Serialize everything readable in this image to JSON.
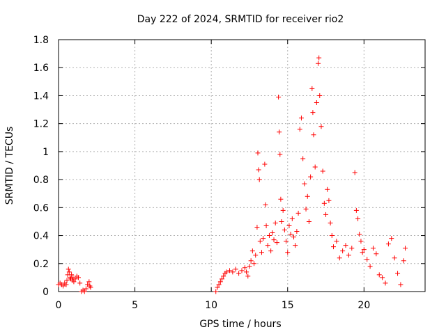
{
  "chart_data": {
    "type": "scatter",
    "title": "Day 222 of 2024, SRMTID for receiver rio2",
    "xlabel": "GPS time / hours",
    "ylabel": "SRMTID / TECUs",
    "xlim": [
      0,
      24
    ],
    "ylim": [
      0,
      1.8
    ],
    "xticks": [
      0,
      5,
      10,
      15,
      20
    ],
    "xtick_labels": [
      "0",
      "5",
      "10",
      "15",
      "20"
    ],
    "yticks": [
      0,
      0.2,
      0.4,
      0.6,
      0.8,
      1,
      1.2,
      1.4,
      1.6,
      1.8
    ],
    "ytick_labels": [
      "0",
      "0.2",
      "0.4",
      "0.6",
      "0.8",
      "1",
      "1.2",
      "1.4",
      "1.6",
      "1.8"
    ],
    "grid": true,
    "marker": "+",
    "color": "#ff0000",
    "series": [
      {
        "name": "SRMTID",
        "points": [
          [
            0.0,
            0.05
          ],
          [
            0.1,
            0.06
          ],
          [
            0.2,
            0.05
          ],
          [
            0.3,
            0.04
          ],
          [
            0.4,
            0.06
          ],
          [
            0.5,
            0.05
          ],
          [
            0.55,
            0.08
          ],
          [
            0.6,
            0.12
          ],
          [
            0.65,
            0.16
          ],
          [
            0.7,
            0.14
          ],
          [
            0.75,
            0.1
          ],
          [
            0.8,
            0.09
          ],
          [
            0.85,
            0.12
          ],
          [
            0.9,
            0.08
          ],
          [
            0.95,
            0.1
          ],
          [
            1.0,
            0.07
          ],
          [
            1.1,
            0.09
          ],
          [
            1.2,
            0.11
          ],
          [
            1.3,
            0.1
          ],
          [
            1.4,
            0.06
          ],
          [
            1.5,
            0.0
          ],
          [
            1.6,
            0.01
          ],
          [
            1.7,
            0.0
          ],
          [
            1.8,
            0.02
          ],
          [
            1.9,
            0.05
          ],
          [
            2.0,
            0.07
          ],
          [
            2.05,
            0.04
          ],
          [
            2.1,
            0.03
          ],
          [
            10.3,
            0.0
          ],
          [
            10.4,
            0.03
          ],
          [
            10.5,
            0.05
          ],
          [
            10.6,
            0.07
          ],
          [
            10.7,
            0.09
          ],
          [
            10.8,
            0.11
          ],
          [
            10.9,
            0.13
          ],
          [
            11.0,
            0.14
          ],
          [
            11.2,
            0.15
          ],
          [
            11.4,
            0.14
          ],
          [
            11.6,
            0.16
          ],
          [
            11.8,
            0.13
          ],
          [
            12.0,
            0.15
          ],
          [
            12.2,
            0.17
          ],
          [
            12.3,
            0.14
          ],
          [
            12.4,
            0.11
          ],
          [
            12.5,
            0.18
          ],
          [
            12.6,
            0.22
          ],
          [
            12.7,
            0.29
          ],
          [
            12.8,
            0.2
          ],
          [
            12.9,
            0.26
          ],
          [
            13.0,
            0.46
          ],
          [
            13.05,
            0.99
          ],
          [
            13.1,
            0.87
          ],
          [
            13.15,
            0.8
          ],
          [
            13.2,
            0.36
          ],
          [
            13.3,
            0.28
          ],
          [
            13.4,
            0.38
          ],
          [
            13.5,
            0.91
          ],
          [
            13.55,
            0.62
          ],
          [
            13.6,
            0.47
          ],
          [
            13.7,
            0.33
          ],
          [
            13.8,
            0.4
          ],
          [
            13.9,
            0.29
          ],
          [
            14.0,
            0.42
          ],
          [
            14.1,
            0.37
          ],
          [
            14.2,
            0.49
          ],
          [
            14.3,
            0.35
          ],
          [
            14.4,
            1.39
          ],
          [
            14.45,
            1.14
          ],
          [
            14.5,
            0.98
          ],
          [
            14.55,
            0.66
          ],
          [
            14.6,
            0.5
          ],
          [
            14.7,
            0.58
          ],
          [
            14.8,
            0.44
          ],
          [
            14.9,
            0.36
          ],
          [
            15.0,
            0.28
          ],
          [
            15.1,
            0.47
          ],
          [
            15.2,
            0.41
          ],
          [
            15.3,
            0.52
          ],
          [
            15.4,
            0.39
          ],
          [
            15.5,
            0.33
          ],
          [
            15.6,
            0.43
          ],
          [
            15.7,
            0.56
          ],
          [
            15.8,
            1.16
          ],
          [
            15.9,
            1.24
          ],
          [
            16.0,
            0.95
          ],
          [
            16.1,
            0.77
          ],
          [
            16.2,
            0.59
          ],
          [
            16.3,
            0.68
          ],
          [
            16.4,
            0.5
          ],
          [
            16.5,
            0.82
          ],
          [
            16.6,
            1.45
          ],
          [
            16.65,
            1.28
          ],
          [
            16.7,
            1.12
          ],
          [
            16.8,
            0.89
          ],
          [
            16.9,
            1.35
          ],
          [
            17.0,
            1.63
          ],
          [
            17.05,
            1.67
          ],
          [
            17.1,
            1.4
          ],
          [
            17.2,
            1.18
          ],
          [
            17.3,
            0.86
          ],
          [
            17.4,
            0.63
          ],
          [
            17.5,
            0.55
          ],
          [
            17.6,
            0.73
          ],
          [
            17.7,
            0.65
          ],
          [
            17.8,
            0.49
          ],
          [
            17.9,
            0.4
          ],
          [
            18.0,
            0.32
          ],
          [
            18.2,
            0.36
          ],
          [
            18.4,
            0.24
          ],
          [
            18.6,
            0.29
          ],
          [
            18.8,
            0.33
          ],
          [
            19.0,
            0.26
          ],
          [
            19.2,
            0.31
          ],
          [
            19.4,
            0.85
          ],
          [
            19.5,
            0.58
          ],
          [
            19.6,
            0.52
          ],
          [
            19.7,
            0.41
          ],
          [
            19.8,
            0.36
          ],
          [
            19.9,
            0.28
          ],
          [
            20.0,
            0.3
          ],
          [
            20.2,
            0.23
          ],
          [
            20.4,
            0.18
          ],
          [
            20.6,
            0.31
          ],
          [
            20.8,
            0.27
          ],
          [
            21.0,
            0.12
          ],
          [
            21.2,
            0.1
          ],
          [
            21.4,
            0.06
          ],
          [
            21.6,
            0.34
          ],
          [
            21.8,
            0.38
          ],
          [
            22.0,
            0.24
          ],
          [
            22.2,
            0.13
          ],
          [
            22.4,
            0.05
          ],
          [
            22.6,
            0.22
          ],
          [
            22.7,
            0.31
          ]
        ]
      }
    ]
  }
}
